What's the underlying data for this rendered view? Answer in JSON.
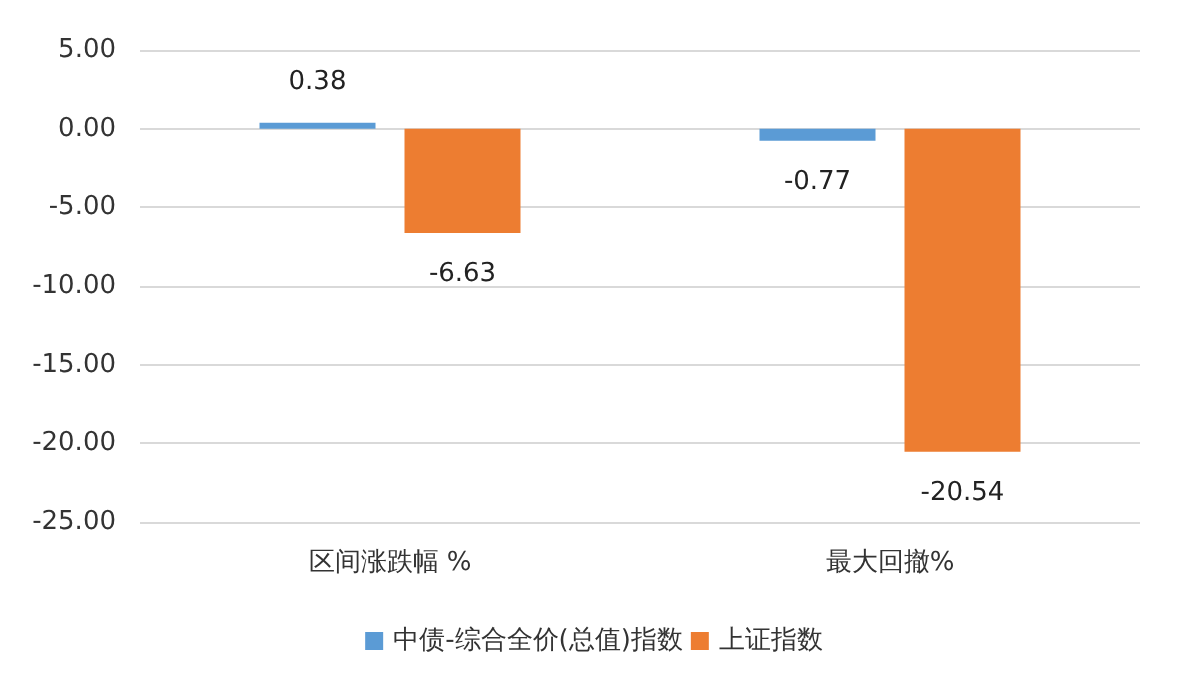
{
  "chart_data": {
    "type": "bar",
    "categories": [
      "区间涨跌幅 %",
      "最大回撤%"
    ],
    "series": [
      {
        "name": "中债-综合全价(总值)指数",
        "color": "#5b9bd5",
        "values": [
          0.38,
          -0.77
        ]
      },
      {
        "name": "上证指数",
        "color": "#ed7d31",
        "values": [
          -6.63,
          -20.54
        ]
      }
    ],
    "ylim": [
      -25,
      5
    ],
    "yticks": [
      {
        "value": -25,
        "label": "-25.00"
      },
      {
        "value": -20,
        "label": "-20.00"
      },
      {
        "value": -15,
        "label": "-15.00"
      },
      {
        "value": -10,
        "label": "-10.00"
      },
      {
        "value": -5,
        "label": "-5.00"
      },
      {
        "value": 0,
        "label": "0.00"
      },
      {
        "value": 5,
        "label": "5.00"
      }
    ],
    "data_labels": true,
    "grid": "y",
    "legend": "bottom"
  }
}
